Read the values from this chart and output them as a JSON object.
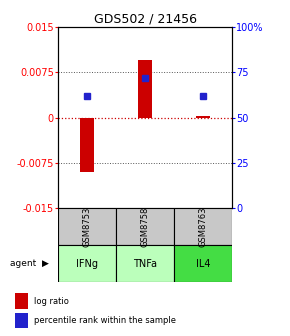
{
  "title": "GDS502 / 21456",
  "samples": [
    "GSM8753",
    "GSM8758",
    "GSM8763"
  ],
  "agents": [
    "IFNg",
    "TNFa",
    "IL4"
  ],
  "log_ratios": [
    -0.009,
    0.0095,
    0.0002
  ],
  "percentile_ranks": [
    0.62,
    0.72,
    0.62
  ],
  "ylim_left": [
    -0.015,
    0.015
  ],
  "yticks_left": [
    -0.015,
    -0.0075,
    0,
    0.0075,
    0.015
  ],
  "ytick_labels_left": [
    "-0.015",
    "-0.0075",
    "0",
    "0.0075",
    "0.015"
  ],
  "yticks_right_pct": [
    0,
    25,
    50,
    75,
    100
  ],
  "ytick_labels_right": [
    "0",
    "25",
    "50",
    "75",
    "100%"
  ],
  "bar_color": "#cc0000",
  "dot_color": "#2222cc",
  "hline_color": "#cc0000",
  "dotted_color": "#555555",
  "sample_bg": "#c8c8c8",
  "agent_colors": [
    "#bbffbb",
    "#bbffbb",
    "#44dd44"
  ],
  "legend_log": "log ratio",
  "legend_pct": "percentile rank within the sample",
  "title_fontsize": 9,
  "tick_fontsize": 7,
  "bar_width": 0.25
}
